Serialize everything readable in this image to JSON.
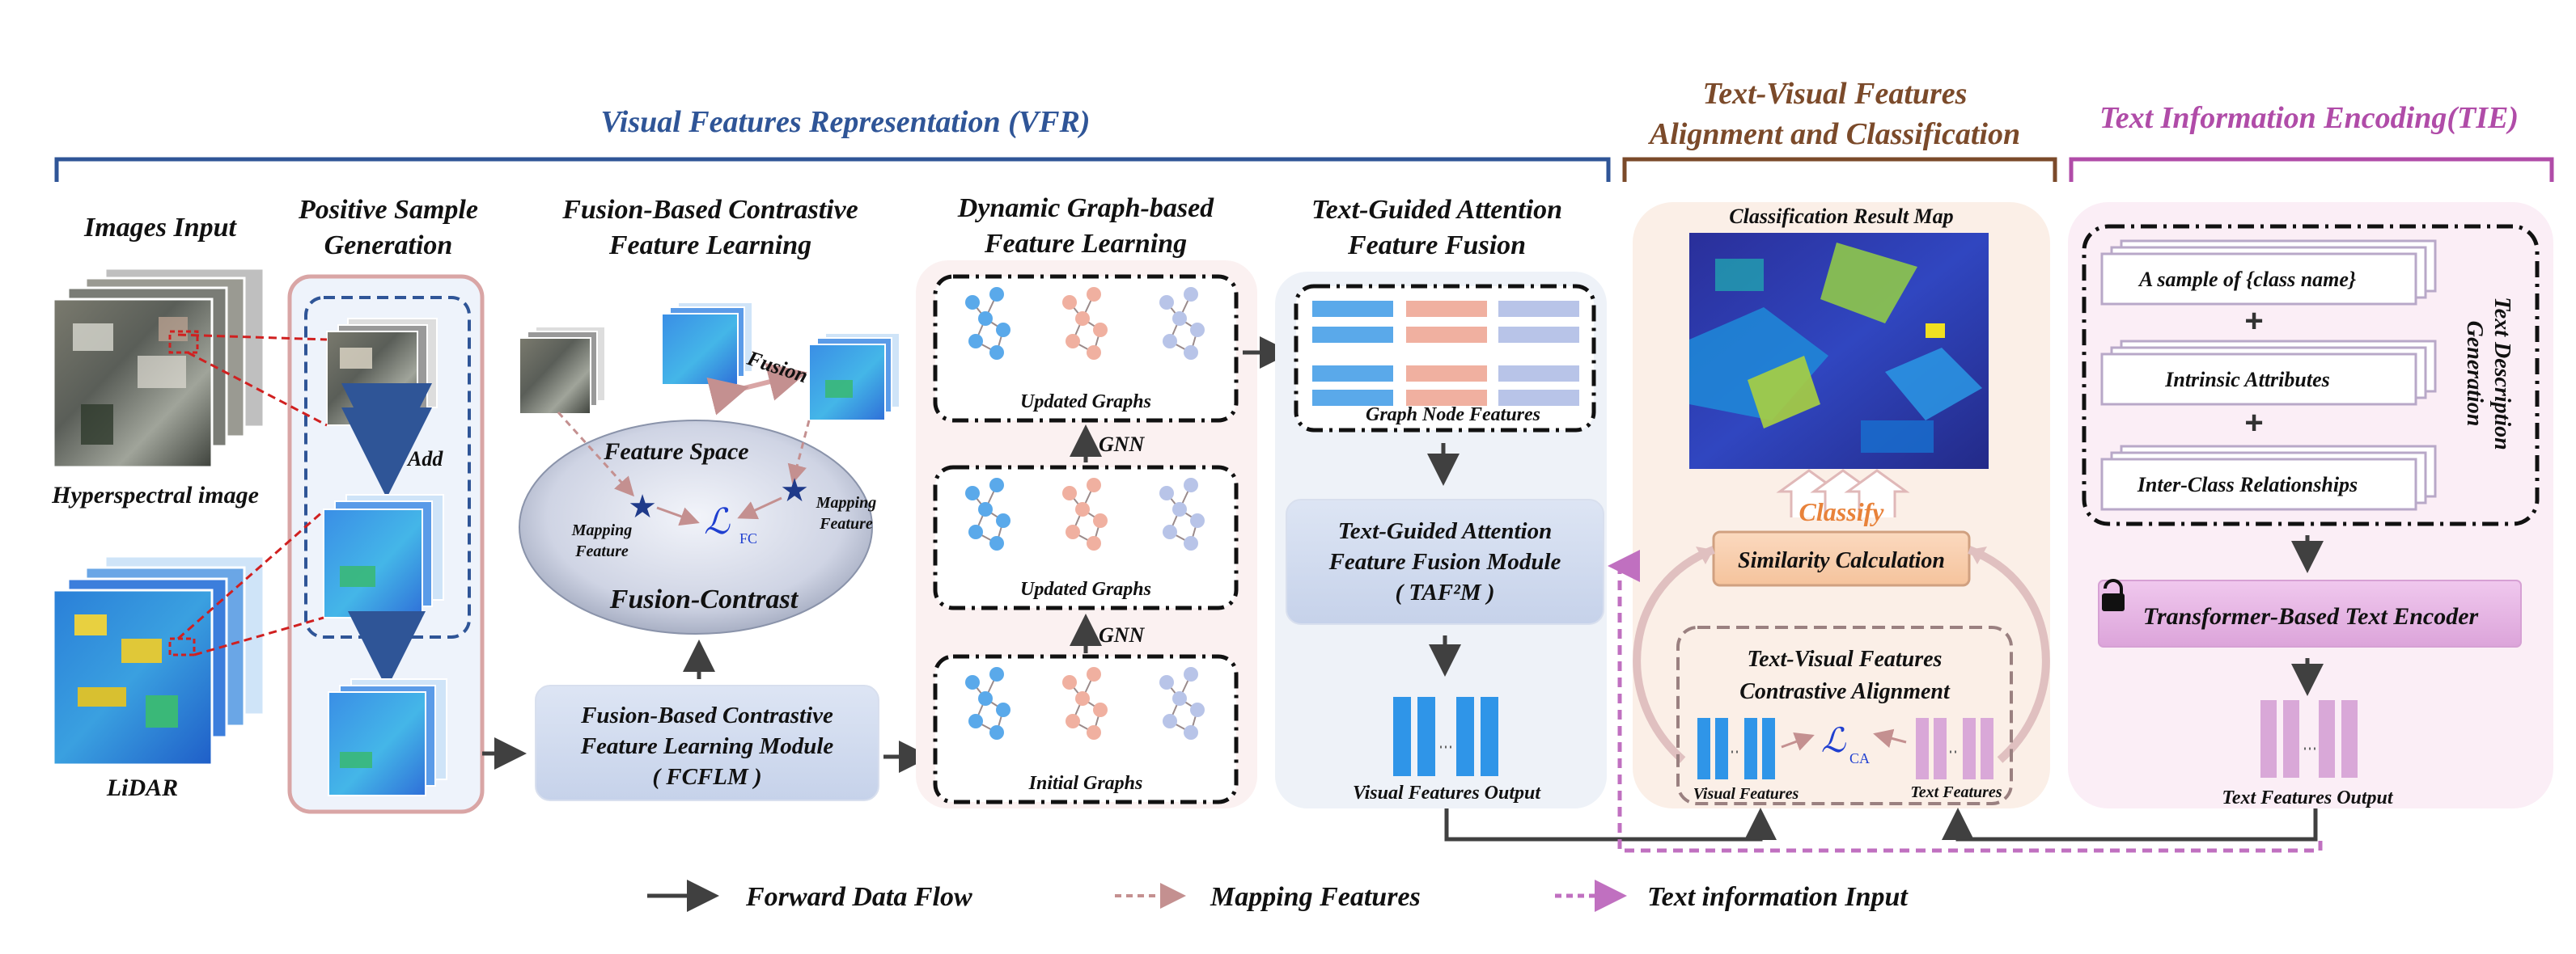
{
  "sections": {
    "vfr": "Visual Features Representation (VFR)",
    "align_line1": "Text-Visual Features",
    "align_line2": "Alignment and Classification",
    "tie": "Text Information Encoding(TIE)"
  },
  "input": {
    "title": "Images Input",
    "hsi_label": "Hyperspectral image",
    "lidar_label": "LiDAR"
  },
  "psg": {
    "title_line1": "Positive Sample",
    "title_line2": "Generation",
    "add_label": "Add"
  },
  "fcfl": {
    "title_line1": "Fusion-Based Contrastive",
    "title_line2": "Feature Learning",
    "fusion_label": "Fusion",
    "feature_space": "Feature Space",
    "mapping_left_line1": "Mapping",
    "mapping_left_line2": "Feature",
    "mapping_right_line1": "Mapping",
    "mapping_right_line2": "Feature",
    "loss_symbol": "ℒ",
    "loss_sub": "FC",
    "fusion_contrast": "Fusion-Contrast",
    "module_line1": "Fusion-Based Contrastive",
    "module_line2": "Feature Learning Module",
    "module_line3": "( FCFLM )"
  },
  "graph": {
    "title_line1": "Dynamic Graph-based",
    "title_line2": "Feature Learning",
    "updated_top": "Updated Graphs",
    "updated_mid": "Updated Graphs",
    "initial": "Initial Graphs",
    "gnn_top": "GNN",
    "gnn_bottom": "GNN"
  },
  "tgaf": {
    "title_line1": "Text-Guided Attention",
    "title_line2": "Feature Fusion",
    "graph_node_features": "Graph Node Features",
    "module_line1": "Text-Guided Attention",
    "module_line2": "Feature Fusion Module",
    "module_line3": "( TAF²M )",
    "visual_output": "Visual Features Output"
  },
  "align": {
    "result_map_title": "Classification Result Map",
    "classify": "Classify",
    "similarity": "Similarity Calculation",
    "contrastive_line1": "Text-Visual Features",
    "contrastive_line2": "Contrastive Alignment",
    "visual_features": "Visual Features",
    "text_features": "Text Features",
    "loss_symbol": "ℒ",
    "loss_sub": "CA"
  },
  "tie": {
    "prompt1": "A sample of {class name}",
    "prompt2": "Intrinsic Attributes",
    "prompt3": "Inter-Class Relationships",
    "plus": "+",
    "side_line1": "Text Description",
    "side_line2": "Generation",
    "encoder": "Transformer-Based Text Encoder",
    "text_output": "Text Features Output"
  },
  "legend": {
    "forward": "Forward Data Flow",
    "mapping": "Mapping Features",
    "text_input": "Text information Input"
  },
  "colors": {
    "vfr_blue": "#2f5597",
    "align_brown": "#7b4a2a",
    "tie_pink": "#b04ca8",
    "feature_blue": "#2f95e8",
    "text_pink": "#d9a8d8",
    "node_blue": "#5aa9ea",
    "node_pink": "#f0b0a0",
    "node_lavender": "#b8c4e8",
    "loss_blue": "#1f3fd0",
    "classify_orange": "#e8823a"
  }
}
